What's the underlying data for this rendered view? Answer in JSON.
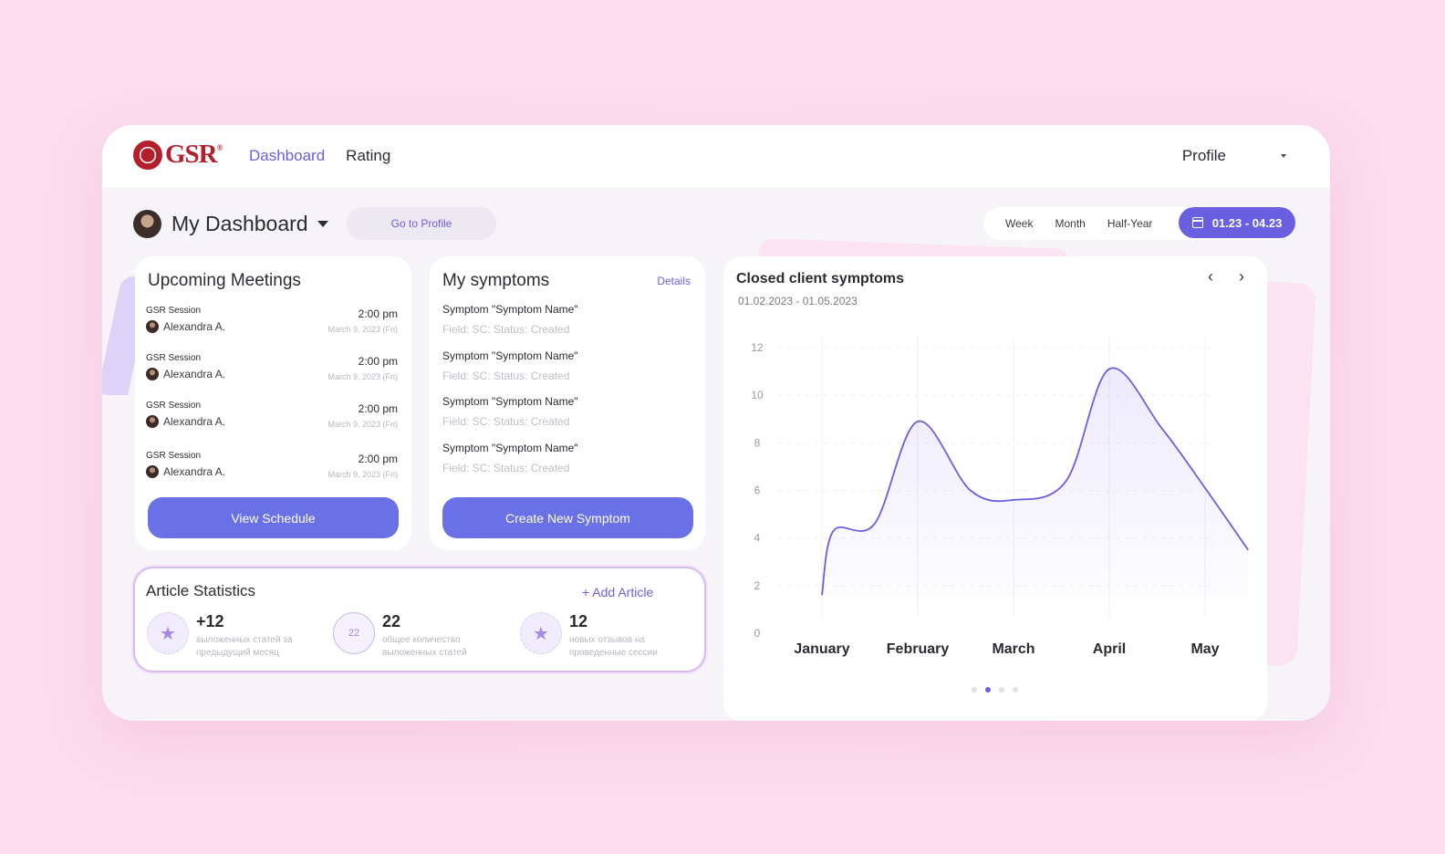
{
  "header": {
    "logo_text": "GSR",
    "logo_mark": "®",
    "nav": [
      {
        "label": "Dashboard",
        "active": true
      },
      {
        "label": "Rating",
        "active": false
      }
    ],
    "profile_label": "Profile"
  },
  "dashboard": {
    "title": "My Dashboard",
    "goto_profile": "Go to Profile",
    "periods": [
      "Week",
      "Month",
      "Half-Year"
    ],
    "date_range": "01.23 - 04.23"
  },
  "meetings": {
    "title": "Upcoming Meetings",
    "items": [
      {
        "label": "GSR Session",
        "person": "Alexandra A.",
        "time": "2:00 pm",
        "date": "March 9, 2023 (Fri)"
      },
      {
        "label": "GSR Session",
        "person": "Alexandra A.",
        "time": "2:00 pm",
        "date": "March 9, 2023 (Fri)"
      },
      {
        "label": "GSR Session",
        "person": "Alexandra A.",
        "time": "2:00 pm",
        "date": "March 9, 2023 (Fri)"
      },
      {
        "label": "GSR Session",
        "person": "Alexandra A.",
        "time": "2:00 pm",
        "date": "March 9, 2023 (Fri)"
      }
    ],
    "button": "View Schedule"
  },
  "symptoms": {
    "title": "My symptoms",
    "details": "Details",
    "items": [
      {
        "name": "Symptom \"Symptom Name\"",
        "meta": "Field: SC: Status: Created"
      },
      {
        "name": "Symptom \"Symptom Name\"",
        "meta": "Field: SC: Status: Created"
      },
      {
        "name": "Symptom \"Symptom Name\"",
        "meta": "Field: SC: Status: Created"
      },
      {
        "name": "Symptom \"Symptom Name\"",
        "meta": "Field: SC: Status: Created"
      }
    ],
    "button": "Create New Symptom"
  },
  "articles": {
    "title": "Article Statistics",
    "add": "+ Add Article",
    "stats": [
      {
        "value": "+12",
        "desc": "выложенных статей за предыдущий месяц",
        "badge": "star-icon"
      },
      {
        "value": "22",
        "desc": "общее количество выложенных статей",
        "badge_text": "22"
      },
      {
        "value": "12",
        "desc": "новых отзывов на проведенные сессии",
        "badge": "star-icon"
      }
    ]
  },
  "chart": {
    "title": "Closed client symptoms",
    "range": "01.02.2023 - 01.05.2023",
    "active_dot": 1,
    "dot_count": 4
  },
  "chart_data": {
    "type": "area",
    "title": "Closed client symptoms",
    "subtitle": "01.02.2023 - 01.05.2023",
    "categories": [
      "January",
      "February",
      "March",
      "April",
      "May"
    ],
    "yticks": [
      0,
      2,
      4,
      6,
      8,
      10,
      12
    ],
    "ylim": [
      0,
      12
    ],
    "grid": true,
    "line_color": "#6a5fe0",
    "points": [
      [
        0.0,
        1.6
      ],
      [
        0.12,
        4.3
      ],
      [
        0.55,
        4.6
      ],
      [
        1.0,
        8.9
      ],
      [
        1.55,
        6.0
      ],
      [
        2.0,
        5.6
      ],
      [
        2.55,
        6.4
      ],
      [
        3.0,
        11.1
      ],
      [
        3.55,
        8.6
      ],
      [
        4.0,
        6.1
      ],
      [
        4.45,
        3.5
      ]
    ]
  },
  "colors": {
    "accent": "#6a5fe0",
    "button": "#6a70e6",
    "background": "#fcdcee",
    "brand": "#b51f2c"
  }
}
